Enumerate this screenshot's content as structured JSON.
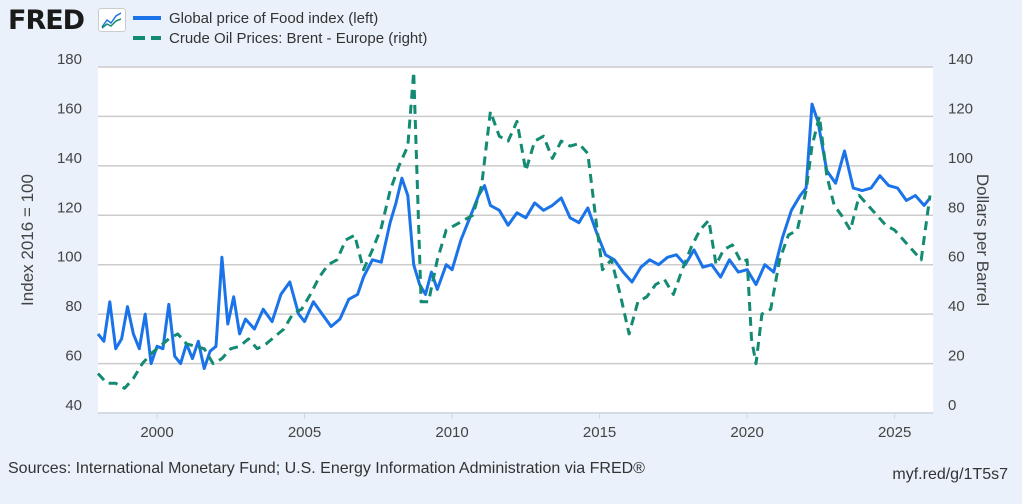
{
  "header": {
    "logo_text": "FRED",
    "logo_icon": "chart-line-icon"
  },
  "footer": {
    "sources": "Sources: International Monetary Fund; U.S. Energy Information Administration via FRED®",
    "short_url": "myf.red/g/1T5s7"
  },
  "colors": {
    "food": "#1a73e8",
    "oil": "#138a72",
    "background": "#eaf1fa",
    "plot_bg": "#ffffff",
    "grid": "#cccccc"
  },
  "chart_data": {
    "type": "line",
    "title": "",
    "xlabel": "",
    "ylabel_left": "Index 2016 = 100",
    "ylabel_right": "Dollars per Barrel",
    "xlim": [
      1998,
      2026.3
    ],
    "ylim_left": [
      40,
      180
    ],
    "ylim_right": [
      0,
      140
    ],
    "x_ticks": [
      "2000",
      "2005",
      "2010",
      "2015",
      "2020",
      "2025"
    ],
    "y_ticks_left": [
      "40",
      "60",
      "80",
      "100",
      "120",
      "140",
      "160",
      "180"
    ],
    "y_ticks_right": [
      "0",
      "20",
      "40",
      "60",
      "80",
      "100",
      "120",
      "140"
    ],
    "grid": true,
    "legend_position": "top-left",
    "series": [
      {
        "name": "Global price of Food index (left)",
        "axis": "left",
        "style": "solid",
        "x": [
          1998.0,
          1998.2,
          1998.4,
          1998.6,
          1998.8,
          1999.0,
          1999.2,
          1999.4,
          1999.6,
          1999.8,
          2000.0,
          2000.2,
          2000.4,
          2000.6,
          2000.8,
          2001.0,
          2001.2,
          2001.4,
          2001.6,
          2001.8,
          2002.0,
          2002.2,
          2002.4,
          2002.6,
          2002.8,
          2003.0,
          2003.3,
          2003.6,
          2003.9,
          2004.2,
          2004.5,
          2004.8,
          2005.0,
          2005.3,
          2005.6,
          2005.9,
          2006.2,
          2006.5,
          2006.8,
          2007.0,
          2007.3,
          2007.6,
          2007.9,
          2008.1,
          2008.3,
          2008.5,
          2008.7,
          2008.9,
          2009.1,
          2009.3,
          2009.5,
          2009.8,
          2010.0,
          2010.3,
          2010.6,
          2010.9,
          2011.1,
          2011.3,
          2011.6,
          2011.9,
          2012.2,
          2012.5,
          2012.8,
          2013.1,
          2013.4,
          2013.7,
          2014.0,
          2014.3,
          2014.6,
          2014.9,
          2015.2,
          2015.5,
          2015.8,
          2016.1,
          2016.4,
          2016.7,
          2017.0,
          2017.3,
          2017.6,
          2017.9,
          2018.2,
          2018.5,
          2018.8,
          2019.1,
          2019.4,
          2019.7,
          2020.0,
          2020.3,
          2020.6,
          2020.9,
          2021.2,
          2021.5,
          2021.8,
          2022.0,
          2022.2,
          2022.4,
          2022.7,
          2023.0,
          2023.3,
          2023.6,
          2023.9,
          2024.2,
          2024.5,
          2024.8,
          2025.1,
          2025.4,
          2025.7,
          2026.0,
          2026.2
        ],
        "values": [
          72,
          69,
          85,
          66,
          70,
          83,
          72,
          66,
          80,
          60,
          67,
          66,
          84,
          63,
          60,
          68,
          62,
          69,
          58,
          65,
          67,
          103,
          76,
          87,
          72,
          78,
          74,
          82,
          77,
          88,
          93,
          80,
          77,
          85,
          80,
          75,
          78,
          86,
          88,
          95,
          102,
          101,
          117,
          125,
          135,
          128,
          100,
          92,
          88,
          97,
          90,
          100,
          98,
          110,
          119,
          128,
          132,
          124,
          122,
          116,
          121,
          119,
          125,
          122,
          124,
          127,
          119,
          117,
          123,
          113,
          104,
          102,
          97,
          93,
          99,
          102,
          100,
          103,
          104,
          100,
          106,
          99,
          100,
          95,
          102,
          97,
          98,
          92,
          100,
          97,
          111,
          122,
          128,
          131,
          165,
          158,
          138,
          133,
          146,
          131,
          130,
          131,
          136,
          132,
          131,
          126,
          128,
          124,
          127
        ]
      },
      {
        "name": "Crude Oil Prices: Brent - Europe (right)",
        "axis": "right",
        "style": "dashed",
        "x": [
          1998.0,
          1998.3,
          1998.6,
          1998.9,
          1999.2,
          1999.5,
          1999.8,
          2000.1,
          2000.4,
          2000.7,
          2001.0,
          2001.3,
          2001.6,
          2001.9,
          2002.2,
          2002.5,
          2002.8,
          2003.1,
          2003.4,
          2003.7,
          2004.0,
          2004.3,
          2004.6,
          2004.9,
          2005.2,
          2005.5,
          2005.8,
          2006.1,
          2006.4,
          2006.7,
          2007.0,
          2007.3,
          2007.6,
          2007.9,
          2008.2,
          2008.5,
          2008.7,
          2008.95,
          2009.2,
          2009.5,
          2009.8,
          2010.1,
          2010.4,
          2010.7,
          2011.0,
          2011.3,
          2011.6,
          2011.9,
          2012.2,
          2012.5,
          2012.8,
          2013.1,
          2013.4,
          2013.7,
          2014.0,
          2014.3,
          2014.6,
          2014.9,
          2015.1,
          2015.4,
          2015.7,
          2016.0,
          2016.3,
          2016.6,
          2016.9,
          2017.2,
          2017.5,
          2017.8,
          2018.1,
          2018.4,
          2018.7,
          2018.95,
          2019.2,
          2019.5,
          2019.8,
          2020.0,
          2020.15,
          2020.3,
          2020.5,
          2020.8,
          2021.1,
          2021.4,
          2021.7,
          2022.0,
          2022.2,
          2022.45,
          2022.7,
          2022.95,
          2023.2,
          2023.5,
          2023.8,
          2024.1,
          2024.4,
          2024.7,
          2025.0,
          2025.3,
          2025.6,
          2025.9,
          2026.2
        ],
        "values": [
          16,
          12,
          12,
          10,
          14,
          20,
          24,
          27,
          30,
          32,
          28,
          27,
          26,
          20,
          22,
          26,
          27,
          30,
          26,
          28,
          31,
          34,
          40,
          42,
          48,
          55,
          60,
          62,
          70,
          72,
          58,
          66,
          75,
          90,
          100,
          108,
          138,
          45,
          45,
          62,
          74,
          76,
          78,
          80,
          92,
          122,
          112,
          110,
          118,
          98,
          110,
          112,
          103,
          110,
          108,
          109,
          105,
          76,
          58,
          62,
          48,
          32,
          45,
          47,
          52,
          54,
          48,
          58,
          67,
          74,
          78,
          60,
          66,
          68,
          61,
          62,
          30,
          20,
          40,
          42,
          62,
          72,
          74,
          90,
          108,
          120,
          96,
          84,
          80,
          74,
          88,
          84,
          80,
          76,
          74,
          70,
          66,
          62,
          88
        ]
      }
    ]
  }
}
